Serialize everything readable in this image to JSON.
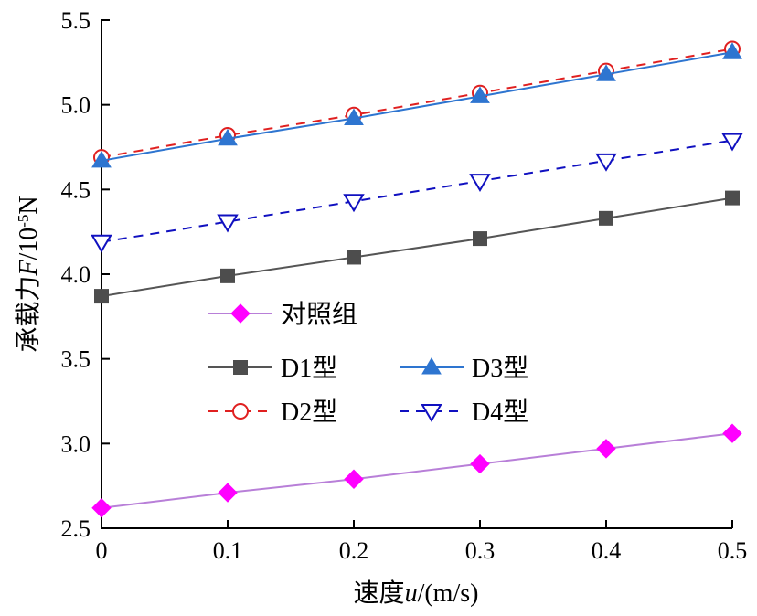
{
  "chart_data": {
    "type": "line",
    "title": "",
    "xlabel": "速度u/(m/s)",
    "ylabel": "承载力F/10⁻⁵N",
    "xlabel_parts": {
      "prefix": "速度",
      "var": "u",
      "suffix": "/(m/s)"
    },
    "ylabel_parts": {
      "prefix": "承载力",
      "var": "F",
      "mid": "/10",
      "exp": "-5",
      "suffix": "N"
    },
    "x": [
      0,
      0.1,
      0.2,
      0.3,
      0.4,
      0.5
    ],
    "x_tick_labels": [
      "0",
      "0.1",
      "0.2",
      "0.3",
      "0.4",
      "0.5"
    ],
    "y_tick_values": [
      2.5,
      3.0,
      3.5,
      4.0,
      4.5,
      5.0,
      5.5
    ],
    "y_tick_labels": [
      "2.5",
      "3.0",
      "3.5",
      "4.0",
      "4.5",
      "5.0",
      "5.5"
    ],
    "xlim": [
      0,
      0.5
    ],
    "ylim": [
      2.5,
      5.5
    ],
    "grid": false,
    "legend_position": "center-left, inside plot",
    "series": [
      {
        "name": "对照组",
        "values": [
          2.62,
          2.71,
          2.79,
          2.88,
          2.97,
          3.06
        ],
        "color": "#b87fd8",
        "marker_color": "#ff00ff",
        "marker": "diamond",
        "dash": "solid"
      },
      {
        "name": "D1型",
        "values": [
          3.87,
          3.99,
          4.1,
          4.21,
          4.33,
          4.45
        ],
        "color": "#555555",
        "marker_color": "#4d4d4d",
        "marker": "square",
        "dash": "solid"
      },
      {
        "name": "D2型",
        "values": [
          4.69,
          4.82,
          4.94,
          5.07,
          5.2,
          5.33
        ],
        "color": "#e02020",
        "marker_color": "#e02020",
        "marker": "circle-open",
        "dash": "dashed"
      },
      {
        "name": "D3型",
        "values": [
          4.67,
          4.8,
          4.92,
          5.05,
          5.18,
          5.31
        ],
        "color": "#2e75d0",
        "marker_color": "#2e75d0",
        "marker": "triangle-up",
        "dash": "solid"
      },
      {
        "name": "D4型",
        "values": [
          4.19,
          4.31,
          4.43,
          4.55,
          4.67,
          4.79
        ],
        "color": "#1010c0",
        "marker_color": "#1010c0",
        "marker": "triangle-down-open",
        "dash": "dashed"
      }
    ]
  }
}
